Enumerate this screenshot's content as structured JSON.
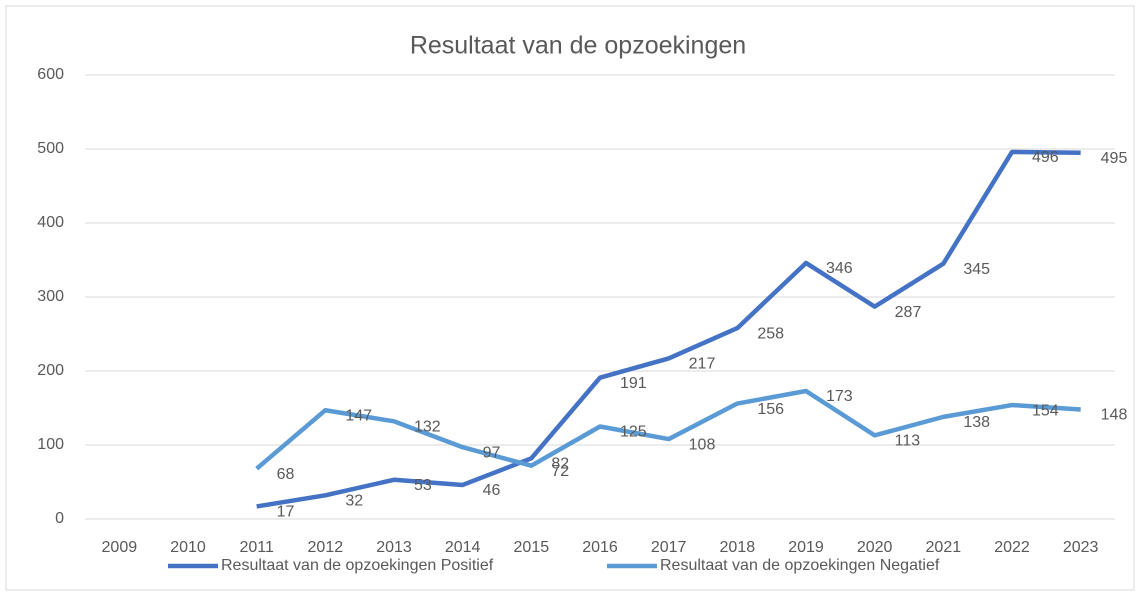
{
  "chart_data": {
    "type": "line",
    "title": "Resultaat van de opzoekingen",
    "categories": [
      "2009",
      "2010",
      "2011",
      "2012",
      "2013",
      "2014",
      "2015",
      "2016",
      "2017",
      "2018",
      "2019",
      "2020",
      "2021",
      "2022",
      "2023"
    ],
    "series": [
      {
        "name": "Resultaat van de opzoekingen Positief",
        "color": "#4472c4",
        "values": [
          null,
          null,
          17,
          32,
          53,
          46,
          82,
          191,
          217,
          258,
          346,
          287,
          345,
          496,
          495
        ]
      },
      {
        "name": "Resultaat van de opzoekingen Negatief",
        "color": "#5b9bd5",
        "values": [
          null,
          null,
          68,
          147,
          132,
          97,
          72,
          125,
          108,
          156,
          173,
          113,
          138,
          154,
          148
        ]
      }
    ],
    "ylim": [
      0,
      600
    ],
    "yticks": [
      0,
      100,
      200,
      300,
      400,
      500,
      600
    ],
    "grid": true,
    "legend": "bottom"
  }
}
